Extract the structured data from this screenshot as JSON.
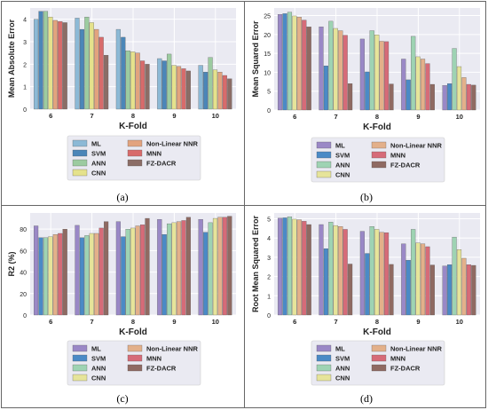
{
  "chart_data": [
    {
      "type": "bar",
      "panel_label": "(a)",
      "xlabel": "K-Fold",
      "ylabel": "Mean Absolute Error",
      "categories": [
        "6",
        "7",
        "8",
        "9",
        "10"
      ],
      "ylim": [
        0,
        4.5
      ],
      "yticks": [
        0,
        1,
        2,
        3,
        4
      ],
      "series": [
        {
          "name": "ML",
          "color": "#8cb9d6",
          "values": [
            4.0,
            4.05,
            3.55,
            2.25,
            1.95
          ]
        },
        {
          "name": "SVM",
          "color": "#4b86b8",
          "values": [
            4.35,
            3.55,
            3.2,
            2.15,
            1.65
          ]
        },
        {
          "name": "ANN",
          "color": "#9ccba0",
          "values": [
            4.35,
            4.1,
            2.6,
            2.45,
            2.3
          ]
        },
        {
          "name": "CNN",
          "color": "#e5e28c",
          "values": [
            4.1,
            3.85,
            2.55,
            1.95,
            1.75
          ]
        },
        {
          "name": "Non-Linear NNR",
          "color": "#e2a37e",
          "values": [
            3.95,
            3.55,
            2.5,
            1.9,
            1.65
          ]
        },
        {
          "name": "MNN",
          "color": "#d86b6b",
          "values": [
            3.9,
            3.2,
            2.15,
            1.8,
            1.5
          ]
        },
        {
          "name": "FZ-DACR",
          "color": "#8b6d66",
          "values": [
            3.85,
            2.4,
            2.0,
            1.7,
            1.35
          ]
        }
      ],
      "legend_position": "bottom",
      "grid": true
    },
    {
      "type": "bar",
      "panel_label": "(b)",
      "xlabel": "K-Fold",
      "ylabel": "Mean Squared Error",
      "categories": [
        "6",
        "7",
        "8",
        "9",
        "10"
      ],
      "ylim": [
        0,
        27
      ],
      "yticks": [
        0,
        5,
        10,
        15,
        20,
        25
      ],
      "series": [
        {
          "name": "ML",
          "color": "#9a88c6",
          "values": [
            25.3,
            22.0,
            18.8,
            13.5,
            6.5
          ]
        },
        {
          "name": "SVM",
          "color": "#4a8ac6",
          "values": [
            25.5,
            11.7,
            10.1,
            8.0,
            7.0
          ]
        },
        {
          "name": "ANN",
          "color": "#9ed3b3",
          "values": [
            25.9,
            23.5,
            21.0,
            19.5,
            16.3
          ]
        },
        {
          "name": "CNN",
          "color": "#e6e49a",
          "values": [
            24.9,
            21.6,
            19.9,
            14.1,
            11.5
          ]
        },
        {
          "name": "Non-Linear NNR",
          "color": "#e3b08a",
          "values": [
            24.6,
            21.0,
            18.2,
            13.5,
            8.6
          ]
        },
        {
          "name": "MNN",
          "color": "#d66b78",
          "values": [
            23.8,
            19.8,
            18.1,
            12.3,
            6.8
          ]
        },
        {
          "name": "FZ-DACR",
          "color": "#8f6a62",
          "values": [
            22.0,
            7.0,
            6.9,
            6.8,
            6.6
          ]
        }
      ],
      "legend_position": "bottom",
      "grid": true
    },
    {
      "type": "bar",
      "panel_label": "(c)",
      "xlabel": "K-Fold",
      "ylabel": "R2 (%)",
      "categories": [
        "6",
        "7",
        "8",
        "9",
        "10"
      ],
      "ylim": [
        0,
        95
      ],
      "yticks": [
        0,
        20,
        40,
        60,
        80
      ],
      "series": [
        {
          "name": "ML",
          "color": "#9a88c6",
          "values": [
            83,
            83.5,
            87,
            89,
            89
          ]
        },
        {
          "name": "SVM",
          "color": "#4a8ac6",
          "values": [
            72,
            72,
            73,
            75,
            77
          ]
        },
        {
          "name": "ANN",
          "color": "#9ed3b3",
          "values": [
            72,
            74,
            80,
            85,
            86
          ]
        },
        {
          "name": "CNN",
          "color": "#e6e49a",
          "values": [
            73,
            76,
            81,
            86,
            90
          ]
        },
        {
          "name": "Non-Linear NNR",
          "color": "#e3b08a",
          "values": [
            75,
            76,
            83,
            87,
            91
          ]
        },
        {
          "name": "MNN",
          "color": "#d66b78",
          "values": [
            76,
            81,
            84,
            88,
            91
          ]
        },
        {
          "name": "FZ-DACR",
          "color": "#8f6a62",
          "values": [
            80,
            87,
            90,
            91,
            92
          ]
        }
      ],
      "legend_position": "bottom",
      "grid": true
    },
    {
      "type": "bar",
      "panel_label": "(d)",
      "xlabel": "K-Fold",
      "ylabel": "Root Mean Squared Error",
      "categories": [
        "6",
        "7",
        "8",
        "9",
        "10"
      ],
      "ylim": [
        0,
        5.3
      ],
      "yticks": [
        0,
        1,
        2,
        3,
        4,
        5
      ],
      "series": [
        {
          "name": "ML",
          "color": "#9a88c6",
          "values": [
            5.03,
            4.7,
            4.35,
            3.7,
            2.55
          ]
        },
        {
          "name": "SVM",
          "color": "#4a8ac6",
          "values": [
            5.05,
            3.45,
            3.2,
            2.85,
            2.62
          ]
        },
        {
          "name": "ANN",
          "color": "#9ed3b3",
          "values": [
            5.1,
            4.83,
            4.6,
            4.45,
            4.05
          ]
        },
        {
          "name": "CNN",
          "color": "#e6e49a",
          "values": [
            4.98,
            4.65,
            4.45,
            3.75,
            3.4
          ]
        },
        {
          "name": "Non-Linear NNR",
          "color": "#e3b08a",
          "values": [
            4.95,
            4.6,
            4.3,
            3.7,
            2.95
          ]
        },
        {
          "name": "MNN",
          "color": "#d66b78",
          "values": [
            4.87,
            4.45,
            4.28,
            3.55,
            2.62
          ]
        },
        {
          "name": "FZ-DACR",
          "color": "#8f6a62",
          "values": [
            4.7,
            2.65,
            2.63,
            2.6,
            2.58
          ]
        }
      ],
      "legend_position": "bottom",
      "grid": true
    }
  ]
}
